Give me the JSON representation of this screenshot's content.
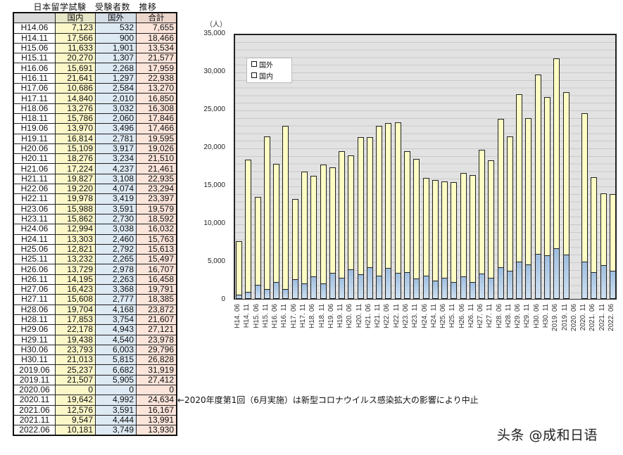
{
  "table": {
    "title": "日本留学試験　受験者数　推移",
    "headers": [
      "",
      "国内",
      "国外",
      "合計"
    ],
    "rows": [
      [
        "H14.06",
        "7,123",
        "532",
        "7,655"
      ],
      [
        "H14.11",
        "17,566",
        "900",
        "18,466"
      ],
      [
        "H15.06",
        "11,633",
        "1,901",
        "13,534"
      ],
      [
        "H15.11",
        "20,270",
        "1,307",
        "21,577"
      ],
      [
        "H16.06",
        "15,691",
        "2,268",
        "17,959"
      ],
      [
        "H16.11",
        "21,641",
        "1,297",
        "22,938"
      ],
      [
        "H17.06",
        "10,686",
        "2,584",
        "13,270"
      ],
      [
        "H17.11",
        "14,840",
        "2,010",
        "16,850"
      ],
      [
        "H18.06",
        "13,276",
        "3,032",
        "16,308"
      ],
      [
        "H18.11",
        "15,786",
        "2,060",
        "17,846"
      ],
      [
        "H19.06",
        "13,970",
        "3,496",
        "17,466"
      ],
      [
        "H19.11",
        "16,814",
        "2,781",
        "19,595"
      ],
      [
        "H20.06",
        "15,109",
        "3,917",
        "19,026"
      ],
      [
        "H20.11",
        "18,276",
        "3,234",
        "21,510"
      ],
      [
        "H21.06",
        "17,224",
        "4,237",
        "21,461"
      ],
      [
        "H21.11",
        "19,827",
        "3,108",
        "22,935"
      ],
      [
        "H22.06",
        "19,220",
        "4,074",
        "23,294"
      ],
      [
        "H22.11",
        "19,978",
        "3,419",
        "23,397"
      ],
      [
        "H23.06",
        "15,988",
        "3,591",
        "19,579"
      ],
      [
        "H23.11",
        "15,862",
        "2,730",
        "18,592"
      ],
      [
        "H24.06",
        "12,994",
        "3,038",
        "16,032"
      ],
      [
        "H24.11",
        "13,303",
        "2,460",
        "15,763"
      ],
      [
        "H25.06",
        "12,821",
        "2,792",
        "15,613"
      ],
      [
        "H25.11",
        "13,232",
        "2,265",
        "15,497"
      ],
      [
        "H26.06",
        "13,729",
        "2,978",
        "16,707"
      ],
      [
        "H26.11",
        "14,195",
        "2,263",
        "16,458"
      ],
      [
        "H27.06",
        "16,423",
        "3,368",
        "19,791"
      ],
      [
        "H27.11",
        "15,608",
        "2,777",
        "18,385"
      ],
      [
        "H28.06",
        "19,704",
        "4,168",
        "23,872"
      ],
      [
        "H28.11",
        "17,853",
        "3,754",
        "21,607"
      ],
      [
        "H29.06",
        "22,178",
        "4,943",
        "27,121"
      ],
      [
        "H29.11",
        "19,438",
        "4,540",
        "23,978"
      ],
      [
        "H30.06",
        "23,793",
        "6,003",
        "29,796"
      ],
      [
        "H30.11",
        "21,013",
        "5,815",
        "26,828"
      ],
      [
        "2019.06",
        "25,237",
        "6,682",
        "31,919"
      ],
      [
        "2019.11",
        "21,507",
        "5,905",
        "27,412"
      ],
      [
        "2020.06",
        "0",
        "0",
        "0"
      ],
      [
        "2020.11",
        "19,642",
        "4,992",
        "24,634"
      ],
      [
        "2021.06",
        "12,576",
        "3,591",
        "16,167"
      ],
      [
        "2021.11",
        "9,547",
        "4,444",
        "13,991"
      ],
      [
        "2022.06",
        "10,181",
        "3,749",
        "13,930"
      ]
    ]
  },
  "note": "←2020年度第1回（6月実施）は新型コロナウイルス感染拡大の影響により中止",
  "watermark": "头条 @成和日语",
  "colors": {
    "domestic": "#fdfdc4",
    "overseas": "#a8c6e6",
    "plot_bg": "#e2e2e2"
  },
  "chart_data": {
    "type": "bar",
    "stacked": true,
    "title": "",
    "xlabel": "",
    "ylabel": "（人）",
    "ylim": [
      0,
      35000
    ],
    "yticks": [
      "0",
      "5,000",
      "10,000",
      "15,000",
      "20,000",
      "25,000",
      "30,000",
      "35,000"
    ],
    "grid": true,
    "legend": [
      "国外",
      "国内"
    ],
    "legend_position": "upper-left",
    "categories": [
      "H14. 06",
      "H14. 11",
      "H15. 06",
      "H15. 11",
      "H16. 06",
      "H16. 11",
      "H17. 06",
      "H17. 11",
      "H18. 06",
      "H18. 11",
      "H19. 06",
      "H19. 11",
      "H20. 06",
      "H20. 11",
      "H21. 06",
      "H21. 11",
      "H22. 06",
      "H22. 11",
      "H23. 06",
      "H23. 11",
      "H24. 06",
      "H24. 11",
      "H25. 06",
      "H25. 11",
      "H26. 06",
      "H26. 11",
      "H27. 06",
      "H27. 11",
      "H28. 06",
      "H28. 11",
      "H29. 06",
      "H29. 11",
      "H30. 06",
      "H30. 11",
      "2019. 06",
      "2019. 11",
      "2020. 06",
      "2020. 11",
      "2021. 06",
      "2021. 11",
      "2022. 06"
    ],
    "series": [
      {
        "name": "国外",
        "values": [
          532,
          900,
          1901,
          1307,
          2268,
          1297,
          2584,
          2010,
          3032,
          2060,
          3496,
          2781,
          3917,
          3234,
          4237,
          3108,
          4074,
          3419,
          3591,
          2730,
          3038,
          2460,
          2792,
          2265,
          2978,
          2263,
          3368,
          2777,
          4168,
          3754,
          4943,
          4540,
          6003,
          5815,
          6682,
          5905,
          0,
          4992,
          3591,
          4444,
          3749
        ]
      },
      {
        "name": "国内",
        "values": [
          7123,
          17566,
          11633,
          20270,
          15691,
          21641,
          10686,
          14840,
          13276,
          15786,
          13970,
          16814,
          15109,
          18276,
          17224,
          19827,
          19220,
          19978,
          15988,
          15862,
          12994,
          13303,
          12821,
          13232,
          13729,
          14195,
          16423,
          15608,
          19704,
          17853,
          22178,
          19438,
          23793,
          21013,
          25237,
          21507,
          0,
          19642,
          12576,
          9547,
          10181
        ]
      }
    ]
  }
}
